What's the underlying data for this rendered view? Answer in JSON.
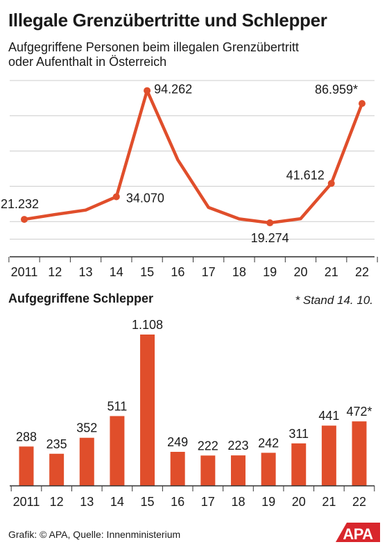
{
  "header": {
    "title": "Illegale Grenzübertritte und Schlepper",
    "subtitle_line1": "Aufgegriffene Personen beim illegalen Grenzübertritt",
    "subtitle_line2": "oder Aufenthalt in Österreich"
  },
  "bar_section": {
    "title": "Aufgegriffene Schlepper",
    "note": "* Stand 14. 10."
  },
  "footer": {
    "source": "Grafik: © APA, Quelle: Innenministerium",
    "logo": "APA"
  },
  "colors": {
    "accent": "#e04e2b",
    "text": "#1a1a1a",
    "grid": "#cccccc",
    "logo_bg": "#d8262c"
  },
  "chart_data": [
    {
      "type": "line",
      "categories": [
        "2011",
        "12",
        "13",
        "14",
        "15",
        "16",
        "17",
        "18",
        "19",
        "20",
        "21",
        "22"
      ],
      "values": [
        21232,
        24000,
        26500,
        34070,
        94262,
        55000,
        28000,
        21500,
        19274,
        21600,
        41612,
        86959
      ],
      "point_labels": [
        "21.232",
        "",
        "",
        "34.070",
        "94.262",
        "",
        "",
        "",
        "19.274",
        "",
        "41.612",
        "86.959*"
      ],
      "ylim": [
        0,
        100000
      ],
      "grid": true
    },
    {
      "type": "bar",
      "categories": [
        "2011",
        "12",
        "13",
        "14",
        "15",
        "16",
        "17",
        "18",
        "19",
        "20",
        "21",
        "22"
      ],
      "values": [
        288,
        235,
        352,
        511,
        1108,
        249,
        222,
        223,
        242,
        311,
        441,
        472
      ],
      "labels": [
        "288",
        "235",
        "352",
        "511",
        "1.108",
        "249",
        "222",
        "223",
        "242",
        "311",
        "441",
        "472*"
      ],
      "ylim": [
        0,
        1108
      ]
    }
  ]
}
